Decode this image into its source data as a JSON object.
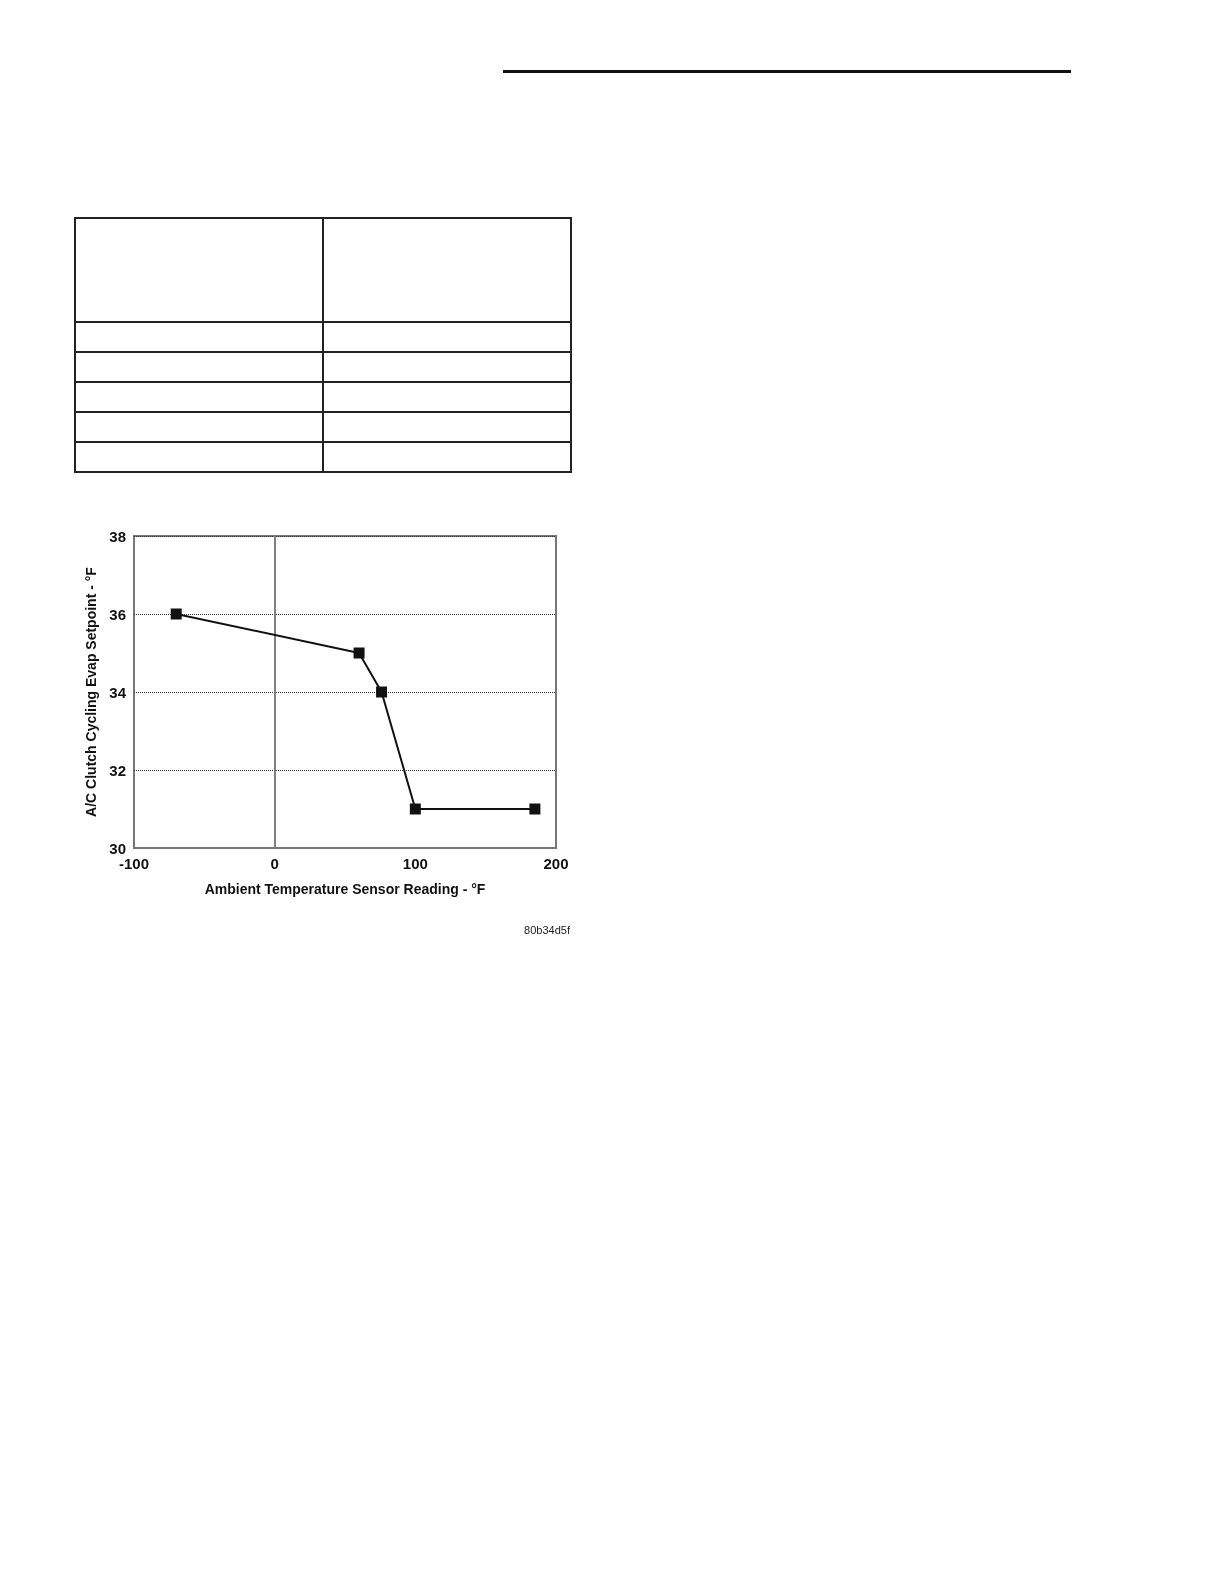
{
  "chart_data": {
    "type": "line",
    "xlabel": "Ambient Temperature Sensor Reading - °F",
    "ylabel": "A/C Clutch Cycling Evap Setpoint - °F",
    "x": [
      -70,
      60,
      76,
      100,
      185
    ],
    "series": [
      {
        "color": "#111111",
        "values": [
          36,
          35,
          34,
          31,
          31
        ]
      }
    ],
    "xlim": [
      -100,
      200
    ],
    "xticks": [
      -100,
      0,
      100,
      200
    ],
    "ylim": [
      30,
      38
    ],
    "yticks": [
      30,
      32,
      34,
      36,
      38
    ],
    "grid": "y",
    "marker": "square",
    "line_style": "solid",
    "ref_lines": [
      {
        "axis": "x",
        "value": 0,
        "color": "#808080"
      }
    ],
    "annotations": [
      "80b34d5f"
    ]
  }
}
